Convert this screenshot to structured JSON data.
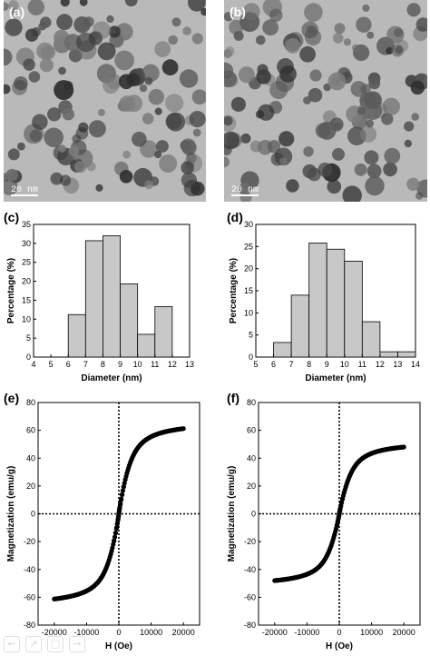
{
  "panels": {
    "a": {
      "label": "(a)",
      "scale_bar": "20 nm"
    },
    "b": {
      "label": "(b)",
      "scale_bar": "20 nm"
    },
    "c": {
      "label": "(c)"
    },
    "d": {
      "label": "(d)"
    },
    "e": {
      "label": "(e)"
    },
    "f": {
      "label": "(f)"
    }
  },
  "colors": {
    "bar_fill": "#c8c8c8",
    "bar_stroke": "#000000",
    "marker": "#000000",
    "tem_bg": "#b9b9b9",
    "tem_particle": "#3c3c3c"
  },
  "nav_icons": [
    "back-icon",
    "forward-icon",
    "page-icon",
    "next-icon"
  ],
  "chart_data": [
    {
      "id": "c",
      "type": "bar",
      "xlabel": "Diameter (nm)",
      "ylabel": "Percentage (%)",
      "xlim": [
        4,
        13
      ],
      "ylim": [
        0,
        35
      ],
      "xticks": [
        4,
        5,
        6,
        7,
        8,
        9,
        10,
        11,
        12,
        13
      ],
      "yticks": [
        0,
        5,
        10,
        15,
        20,
        25,
        30,
        35
      ],
      "bins": [
        {
          "start": 6,
          "end": 7,
          "value": 11.2
        },
        {
          "start": 7,
          "end": 8,
          "value": 30.7
        },
        {
          "start": 8,
          "end": 9,
          "value": 32.0
        },
        {
          "start": 9,
          "end": 10,
          "value": 19.3
        },
        {
          "start": 10,
          "end": 11,
          "value": 6.0
        },
        {
          "start": 11,
          "end": 12,
          "value": 13.3
        }
      ],
      "grid": false
    },
    {
      "id": "d",
      "type": "bar",
      "xlabel": "Diameter (nm)",
      "ylabel": "Percentage (%)",
      "xlim": [
        5,
        14
      ],
      "ylim": [
        0,
        30
      ],
      "xticks": [
        5,
        6,
        7,
        8,
        9,
        10,
        11,
        12,
        13,
        14
      ],
      "yticks": [
        0,
        5,
        10,
        15,
        20,
        25,
        30
      ],
      "bins": [
        {
          "start": 6,
          "end": 7,
          "value": 3.3
        },
        {
          "start": 7,
          "end": 8,
          "value": 14.0
        },
        {
          "start": 8,
          "end": 9,
          "value": 25.8
        },
        {
          "start": 9,
          "end": 10,
          "value": 24.4
        },
        {
          "start": 10,
          "end": 11,
          "value": 21.7
        },
        {
          "start": 11,
          "end": 12,
          "value": 8.0
        },
        {
          "start": 12,
          "end": 13,
          "value": 1.2
        },
        {
          "start": 13,
          "end": 14,
          "value": 1.2
        }
      ],
      "grid": false
    },
    {
      "id": "e",
      "type": "scatter",
      "xlabel": "H (Oe)",
      "ylabel": "Magnetization (emu/g)",
      "xlim": [
        -25000,
        25000
      ],
      "ylim": [
        -80,
        80
      ],
      "xticks": [
        -20000,
        -10000,
        0,
        10000,
        20000
      ],
      "yticks": [
        -80,
        -60,
        -40,
        -20,
        0,
        20,
        40,
        60,
        80
      ],
      "ms": 67,
      "hk": 1900,
      "x_range": [
        -20000,
        20000
      ],
      "reference_lines": "dotted lines at H = 0 and M = 0",
      "grid": false
    },
    {
      "id": "f",
      "type": "scatter",
      "xlabel": "H (Oe)",
      "ylabel": "Magnetization (emu/g)",
      "xlim": [
        -25000,
        25000
      ],
      "ylim": [
        -80,
        80
      ],
      "xticks": [
        -20000,
        -10000,
        0,
        10000,
        20000
      ],
      "yticks": [
        -80,
        -60,
        -40,
        -20,
        0,
        20,
        40,
        60,
        80
      ],
      "ms": 52.5,
      "hk": 1900,
      "x_range": [
        -20000,
        20000
      ],
      "reference_lines": "dotted lines at H = 0 and M = 0",
      "grid": false
    }
  ]
}
